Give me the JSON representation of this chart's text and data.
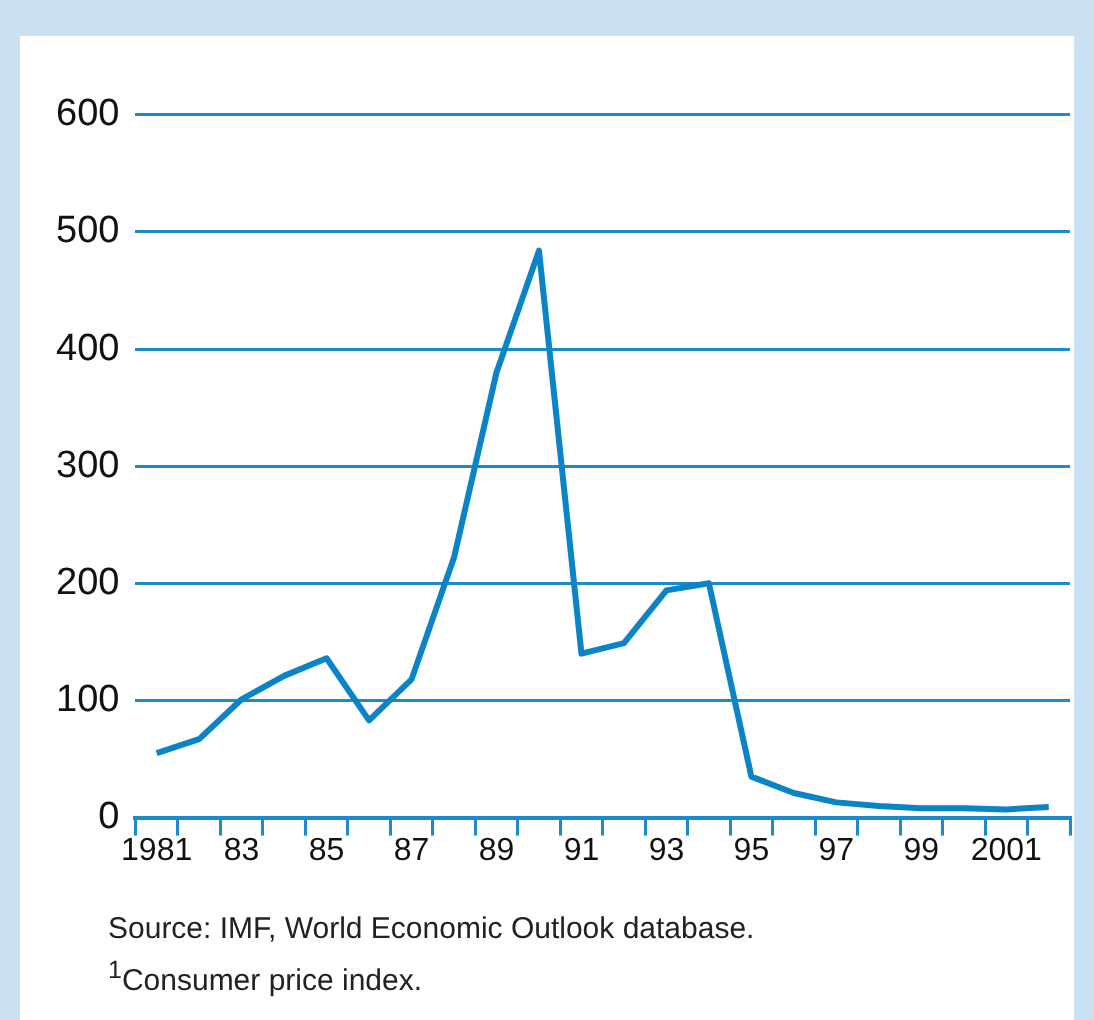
{
  "chart_data": {
    "type": "line",
    "categories": [
      "1981",
      null,
      "83",
      null,
      "85",
      null,
      "87",
      null,
      "89",
      null,
      "91",
      null,
      "93",
      null,
      "95",
      null,
      "97",
      null,
      "99",
      null,
      "2001",
      null
    ],
    "series": [
      {
        "color": "#0a84c6",
        "values": [
          55,
          67,
          101,
          121,
          136,
          83,
          118,
          222,
          380,
          484,
          140,
          149,
          194,
          200,
          35,
          21,
          13,
          10,
          8,
          8,
          7,
          9
        ]
      }
    ],
    "ylim": [
      0,
      600
    ],
    "yticks": [
      0,
      100,
      200,
      300,
      400,
      500,
      600
    ],
    "grid": "y",
    "marker": "none",
    "line_style": "solid",
    "annotations": [
      "Source: IMF, World Economic Outlook database.",
      "$^{1}$Consumer price index."
    ]
  }
}
